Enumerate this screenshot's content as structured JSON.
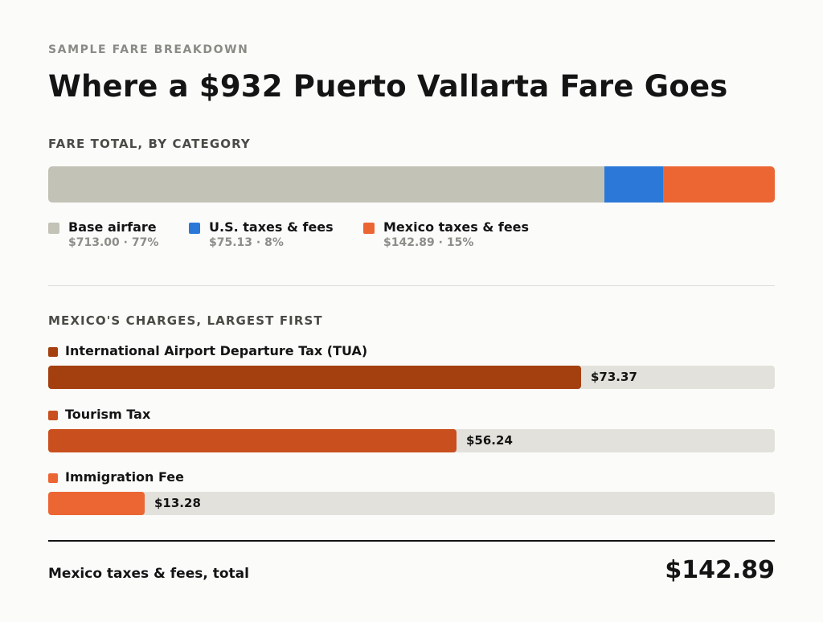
{
  "header": {
    "eyebrow": "SAMPLE FARE BREAKDOWN",
    "title": "Where a $932 Puerto Vallarta Fare Goes"
  },
  "sections": {
    "by_category": "FARE TOTAL, BY CATEGORY",
    "mexico_charges": "MEXICO'S CHARGES, LARGEST FIRST"
  },
  "footer": {
    "total_label": "Mexico taxes & fees, total",
    "total_value": "$142.89"
  },
  "chart_data": [
    {
      "type": "bar",
      "stacked": true,
      "orientation": "horizontal",
      "title": "FARE TOTAL, BY CATEGORY",
      "categories": [
        "Base airfare",
        "U.S. taxes & fees",
        "Mexico taxes & fees"
      ],
      "values": [
        713.0,
        75.13,
        142.89
      ],
      "value_labels": [
        "$713.00 · 77%",
        "$75.13 · 8%",
        "$142.89 · 15%"
      ],
      "colors": [
        "#c3c2b6",
        "#2b78d8",
        "#ec6634"
      ],
      "legend": "below"
    },
    {
      "type": "bar",
      "orientation": "horizontal",
      "title": "MEXICO'S CHARGES, LARGEST FIRST",
      "categories": [
        "International Airport Departure Tax (TUA)",
        "Tourism Tax",
        "Immigration Fee"
      ],
      "values": [
        73.37,
        56.24,
        13.28
      ],
      "value_labels": [
        "$73.37",
        "$56.24",
        "$13.28"
      ],
      "colors": [
        "#a43f10",
        "#c94f1e",
        "#ec6634"
      ],
      "xlim": [
        0,
        100
      ],
      "track_color": "#e2e1db"
    }
  ]
}
